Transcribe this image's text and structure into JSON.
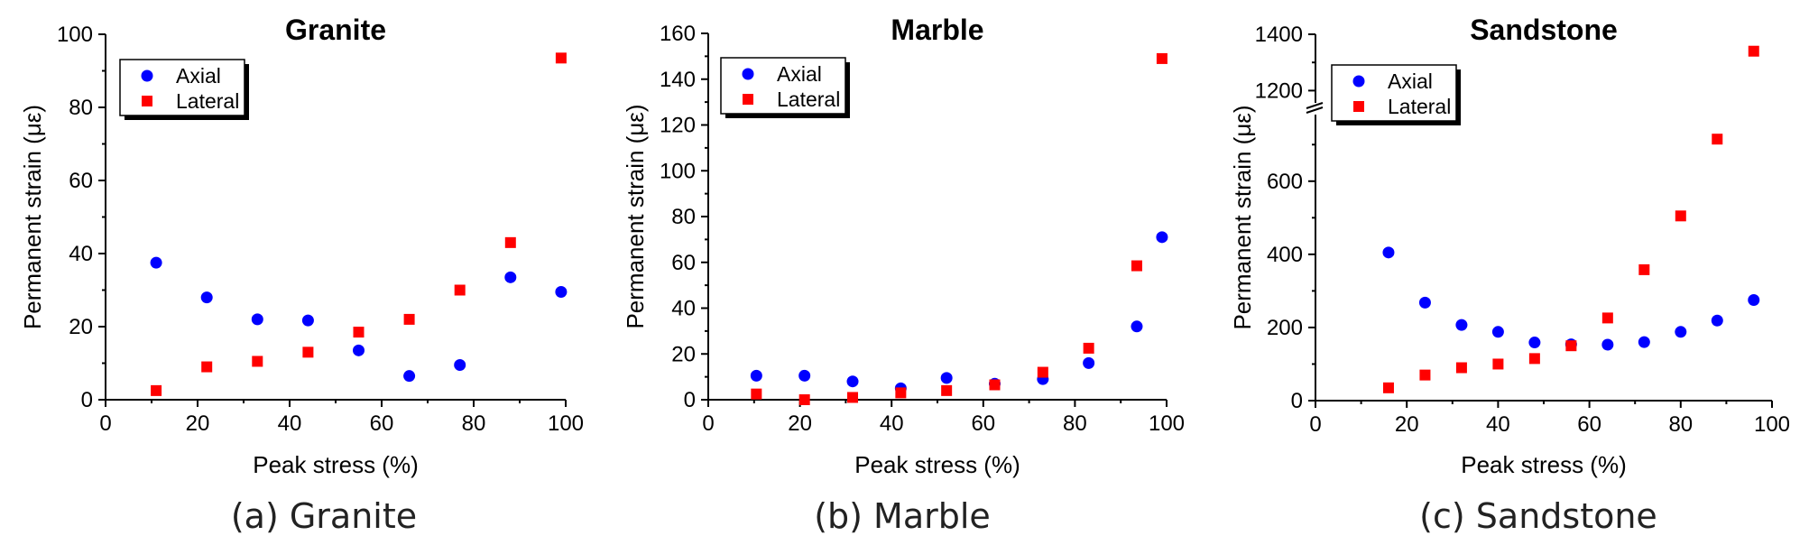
{
  "chart_data": [
    {
      "type": "scatter",
      "title": "Granite",
      "caption": "(a) Granite",
      "xlabel": "Peak stress (%)",
      "ylabel": "Permanent strain (με)",
      "xlim": [
        0,
        100
      ],
      "ylim": [
        0,
        100
      ],
      "x_ticks": [
        0,
        20,
        40,
        60,
        80,
        100
      ],
      "y_ticks": [
        0,
        20,
        40,
        60,
        80,
        100
      ],
      "legend_position": "top-left",
      "series": [
        {
          "name": "Axial",
          "marker": "circle",
          "color": "#0000ff",
          "x": [
            11,
            22,
            33,
            44,
            55,
            66,
            77,
            88,
            99
          ],
          "y": [
            37.5,
            28,
            22,
            21.7,
            13.5,
            6.5,
            9.5,
            33.5,
            29.5
          ]
        },
        {
          "name": "Lateral",
          "marker": "square",
          "color": "#ff0000",
          "x": [
            11,
            22,
            33,
            44,
            55,
            66,
            77,
            88,
            99
          ],
          "y": [
            2.5,
            9,
            10.5,
            13,
            18.5,
            22,
            30,
            43,
            93.5
          ]
        }
      ]
    },
    {
      "type": "scatter",
      "title": "Marble",
      "caption": "(b) Marble",
      "xlabel": "Peak stress (%)",
      "ylabel": "Permanent strain (με)",
      "xlim": [
        0,
        100
      ],
      "ylim": [
        0,
        160
      ],
      "x_ticks": [
        0,
        20,
        40,
        60,
        80,
        100
      ],
      "y_ticks": [
        0,
        20,
        40,
        60,
        80,
        100,
        120,
        140,
        160
      ],
      "legend_position": "top-left",
      "series": [
        {
          "name": "Axial",
          "marker": "circle",
          "color": "#0000ff",
          "x": [
            10.5,
            21,
            31.5,
            42,
            52,
            62.5,
            73,
            83,
            93.5,
            99
          ],
          "y": [
            10.5,
            10.5,
            8,
            5,
            9.5,
            7,
            9,
            16,
            32,
            71
          ]
        },
        {
          "name": "Lateral",
          "marker": "square",
          "color": "#ff0000",
          "x": [
            10.5,
            21,
            31.5,
            42,
            52,
            62.5,
            73,
            83,
            93.5,
            99
          ],
          "y": [
            2.5,
            0,
            1,
            3,
            4,
            6.5,
            12,
            22.5,
            58.5,
            149
          ]
        }
      ]
    },
    {
      "type": "scatter",
      "title": "Sandstone",
      "caption": "(c) Sandstone",
      "xlabel": "Peak stress (%)",
      "ylabel": "Permanent strain (με)",
      "xlim": [
        0,
        100
      ],
      "ylim": [
        0,
        1400
      ],
      "axis_break": [
        750,
        1150
      ],
      "x_ticks": [
        0,
        20,
        40,
        60,
        80,
        100
      ],
      "y_ticks": [
        0,
        200,
        400,
        600,
        1200,
        1400
      ],
      "legend_position": "top-left",
      "series": [
        {
          "name": "Axial",
          "marker": "circle",
          "color": "#0000ff",
          "x": [
            16,
            24,
            32,
            40,
            48,
            56,
            64,
            72,
            80,
            88,
            96
          ],
          "y": [
            405,
            268,
            207,
            188,
            159,
            154,
            153,
            160,
            188,
            219,
            275
          ]
        },
        {
          "name": "Lateral",
          "marker": "square",
          "color": "#ff0000",
          "x": [
            16,
            24,
            32,
            40,
            48,
            56,
            64,
            72,
            80,
            88,
            96
          ],
          "y": [
            35,
            70,
            90,
            100,
            115,
            150,
            226,
            358,
            505,
            715,
            1340
          ]
        }
      ]
    }
  ]
}
